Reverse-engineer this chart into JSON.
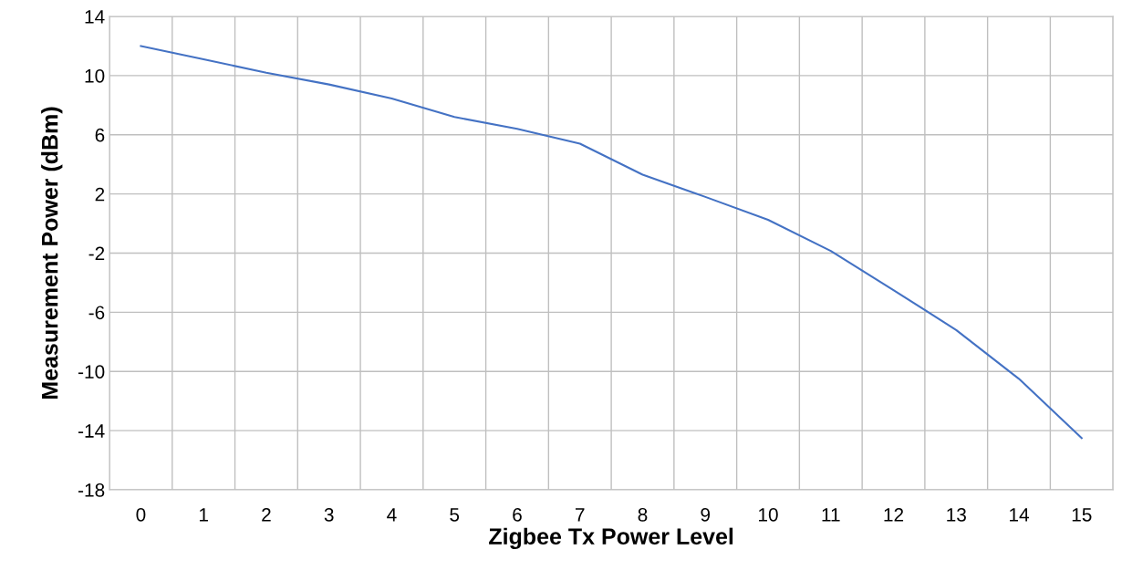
{
  "chart_data": {
    "type": "line",
    "xlabel": "Zigbee Tx Power Level",
    "ylabel": "Measurement Power (dBm)",
    "categories": [
      "0",
      "1",
      "2",
      "3",
      "4",
      "5",
      "6",
      "7",
      "8",
      "9",
      "10",
      "11",
      "12",
      "13",
      "14",
      "15"
    ],
    "series": [
      {
        "color": "#4472c4",
        "values": [
          12.0,
          11.1,
          10.2,
          9.4,
          8.45,
          7.2,
          6.4,
          5.4,
          3.3,
          1.8,
          0.25,
          -1.85,
          -4.5,
          -7.2,
          -10.5,
          -14.5
        ]
      }
    ],
    "ylim": [
      -18,
      14
    ],
    "yticks": [
      -18,
      -14,
      -10,
      -6,
      -2,
      2,
      6,
      10,
      14
    ],
    "grid": true,
    "marker": "none",
    "line_style": "solid"
  }
}
